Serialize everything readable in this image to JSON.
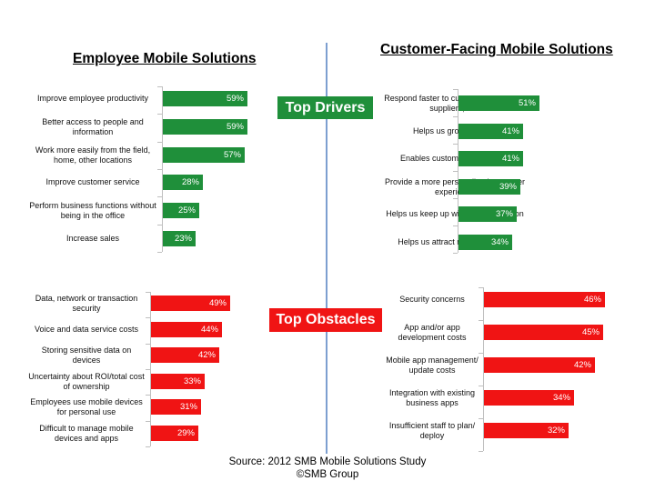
{
  "titles": {
    "employee": "Employee Mobile Solutions",
    "customer": "Customer-Facing Mobile Solutions"
  },
  "banners": {
    "drivers": "Top Drivers",
    "obstacles": "Top Obstacles"
  },
  "source": {
    "line1": "Source: 2012 SMB  Mobile Solutions Study",
    "line2": "©SMB Group"
  },
  "colors": {
    "drivers": "#1f8f3a",
    "obstacles": "#f01414",
    "divider": "#7d9fd0",
    "banner_text": "#ffffff"
  },
  "chart_data": [
    {
      "id": "employee-drivers",
      "type": "bar",
      "orientation": "horizontal",
      "group": "Employee Mobile Solutions - Top Drivers",
      "categories": [
        "Improve employee productivity",
        "Better access to people and information",
        "Work more easily from the field, home, other locations",
        "Improve customer service",
        "Perform  business functions without being in the office",
        "Increase sales"
      ],
      "values": [
        59,
        59,
        57,
        28,
        25,
        23
      ],
      "labels": [
        "59%",
        "59%",
        "57%",
        "28%",
        "25%",
        "23%"
      ],
      "color": "green"
    },
    {
      "id": "customer-drivers",
      "type": "bar",
      "orientation": "horizontal",
      "group": "Customer-Facing Mobile Solutions - Top Drivers",
      "categories": [
        "Respond faster to customers, partners, suppliers, etc.",
        "Helps us grow revenue",
        "Enables customer self-service",
        "Provide a more personalized customer experience",
        "Helps us keep up with the competition",
        "Helps us attract new customers"
      ],
      "values": [
        51,
        41,
        41,
        39,
        37,
        34
      ],
      "labels": [
        "51%",
        "41%",
        "41%",
        "39%",
        "37%",
        "34%"
      ],
      "color": "green"
    },
    {
      "id": "employee-obstacles",
      "type": "bar",
      "orientation": "horizontal",
      "group": "Employee Mobile Solutions - Top Obstacles",
      "categories": [
        "Data, network or transaction security",
        "Voice and data service costs",
        "Storing sensitive data on devices",
        "Uncertainty about ROI/total cost of ownership",
        "Employees use mobile devices for personal use",
        "Difficult to manage mobile devices and apps"
      ],
      "values": [
        49,
        44,
        42,
        33,
        31,
        29
      ],
      "labels": [
        "49%",
        "44%",
        "42%",
        "33%",
        "31%",
        "29%"
      ],
      "color": "red"
    },
    {
      "id": "customer-obstacles",
      "type": "bar",
      "orientation": "horizontal",
      "group": "Customer-Facing Mobile Solutions - Top Obstacles",
      "categories": [
        "Security concerns",
        "App and/or app development costs",
        "Mobile app management/ update costs",
        "Integration with existing business apps",
        "Insufficient staff to plan/ deploy"
      ],
      "values": [
        46,
        45,
        42,
        34,
        32
      ],
      "labels": [
        "46%",
        "45%",
        "42%",
        "34%",
        "32%"
      ],
      "color": "red"
    }
  ]
}
